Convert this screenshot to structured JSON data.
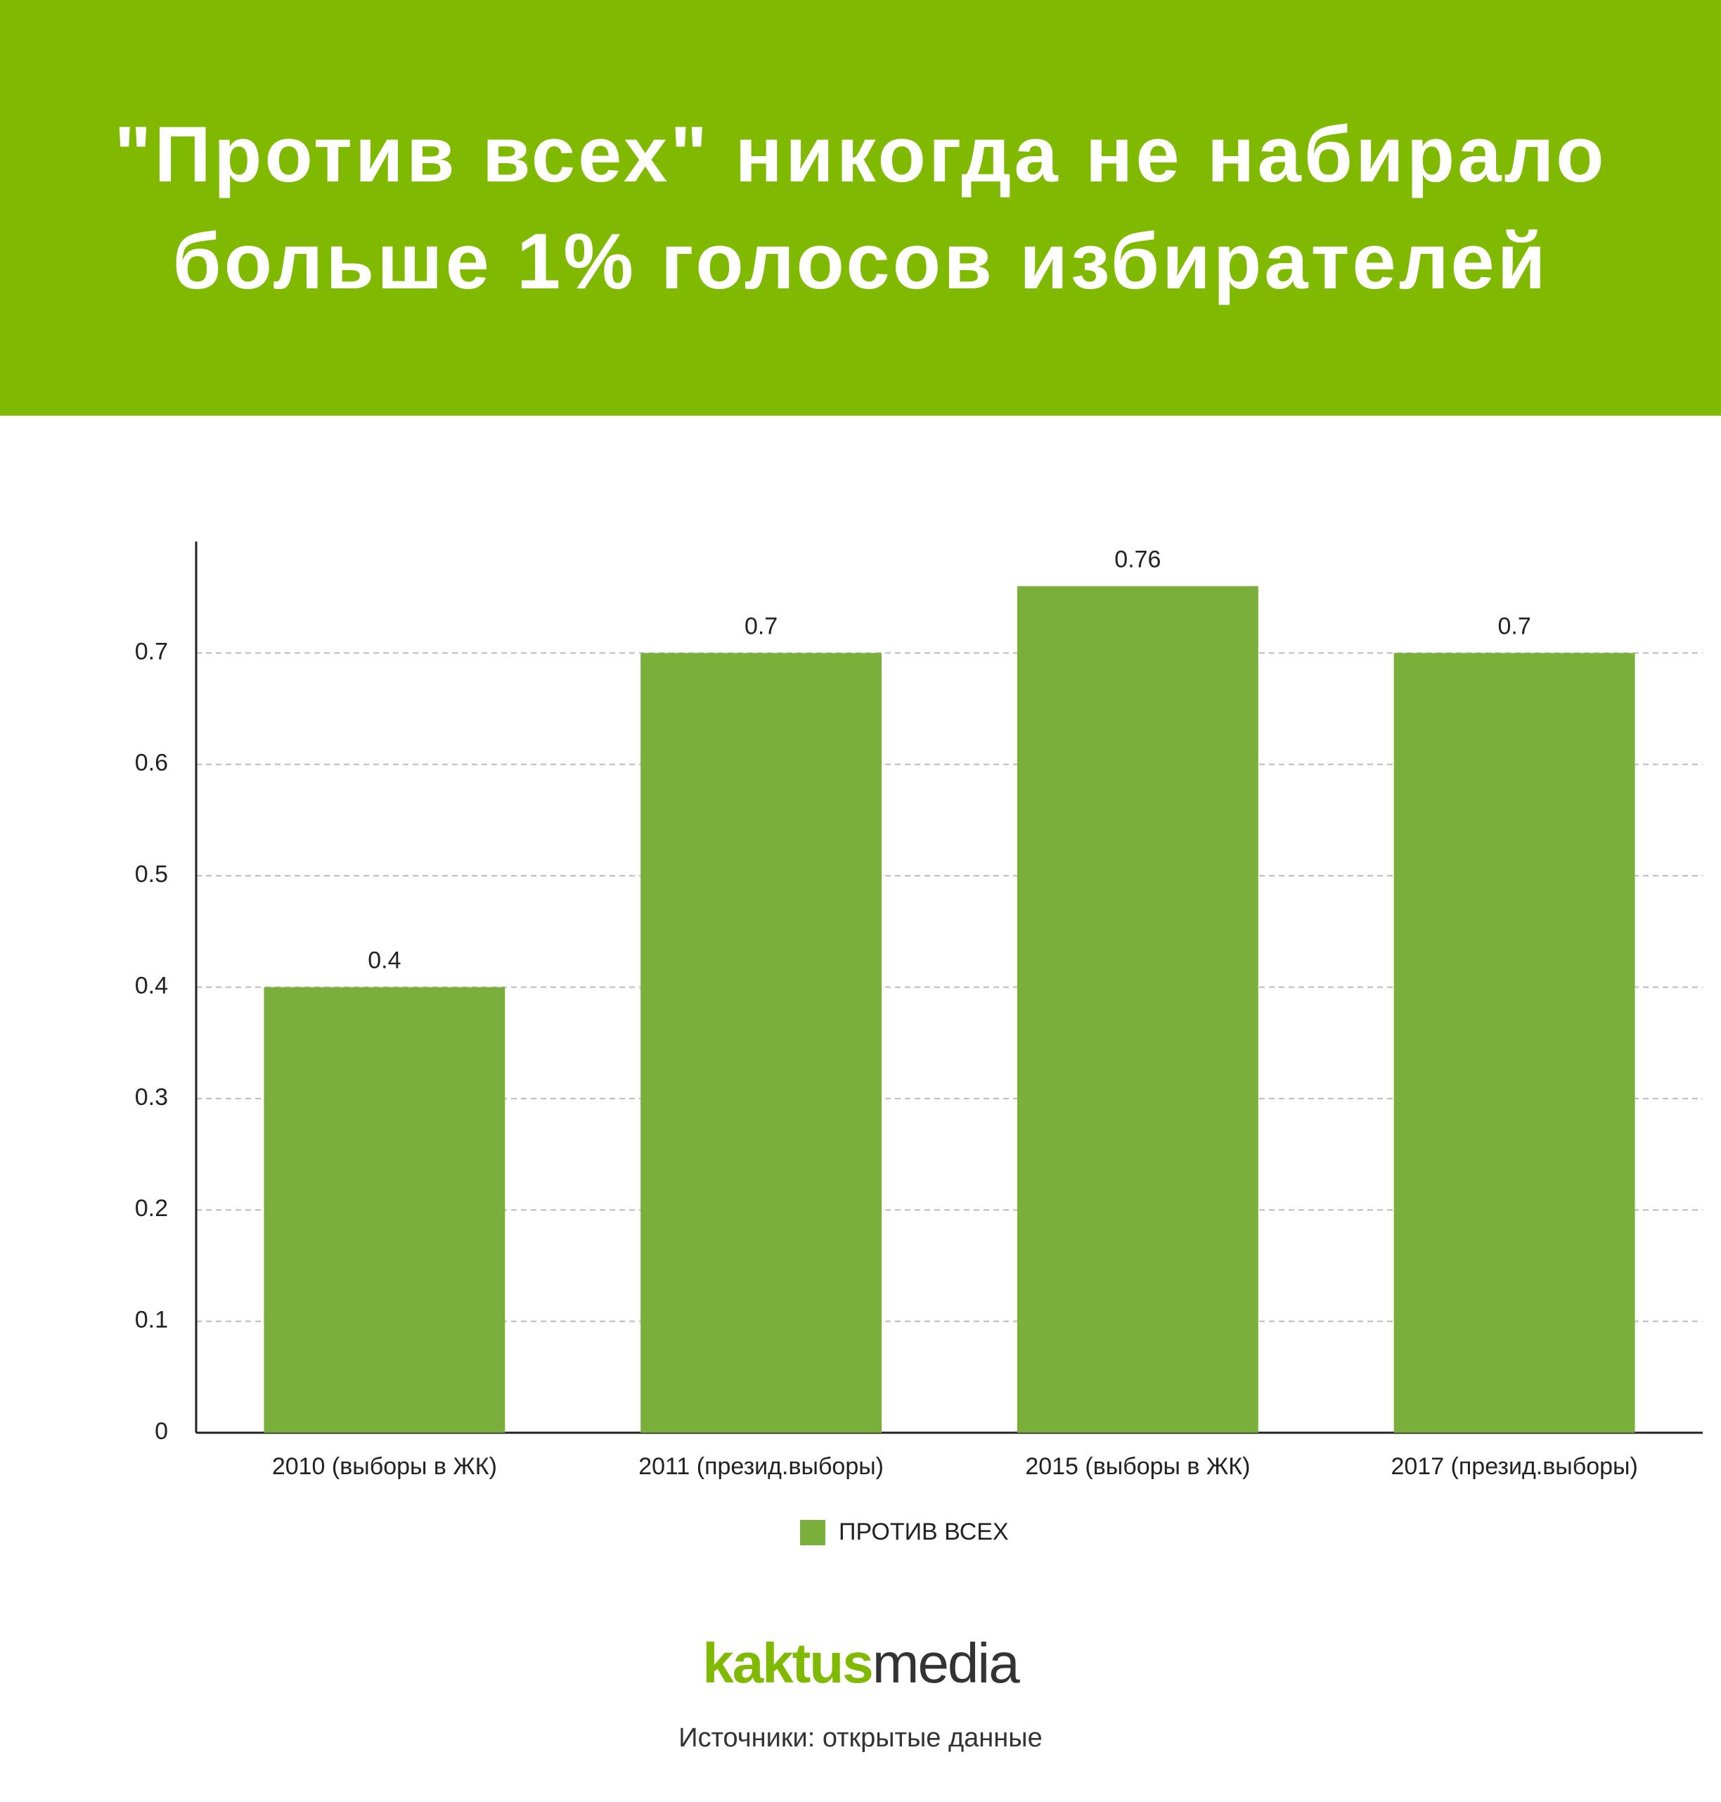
{
  "chart_data": {
    "type": "bar",
    "title": "\"Против всех\" никогда не набирало больше 1% голосов избирателей",
    "categories": [
      "2010 (выборы в ЖК)",
      "2011 (презид.выборы)",
      "2015 (выборы в ЖК)",
      "2017 (презид.выборы)"
    ],
    "series": [
      {
        "name": "ПРОТИВ ВСЕХ",
        "color": "#7aaf3c",
        "values": [
          0.4,
          0.7,
          0.76,
          0.7
        ]
      }
    ],
    "ylim": [
      0,
      0.8
    ],
    "yticks": [
      0,
      0.1,
      0.2,
      0.3,
      0.4,
      0.5,
      0.6,
      0.7
    ],
    "grid": true,
    "legend": "bottom"
  },
  "logo": {
    "first": "kaktus",
    "second": "media"
  },
  "source": "Источники: открытые данные"
}
